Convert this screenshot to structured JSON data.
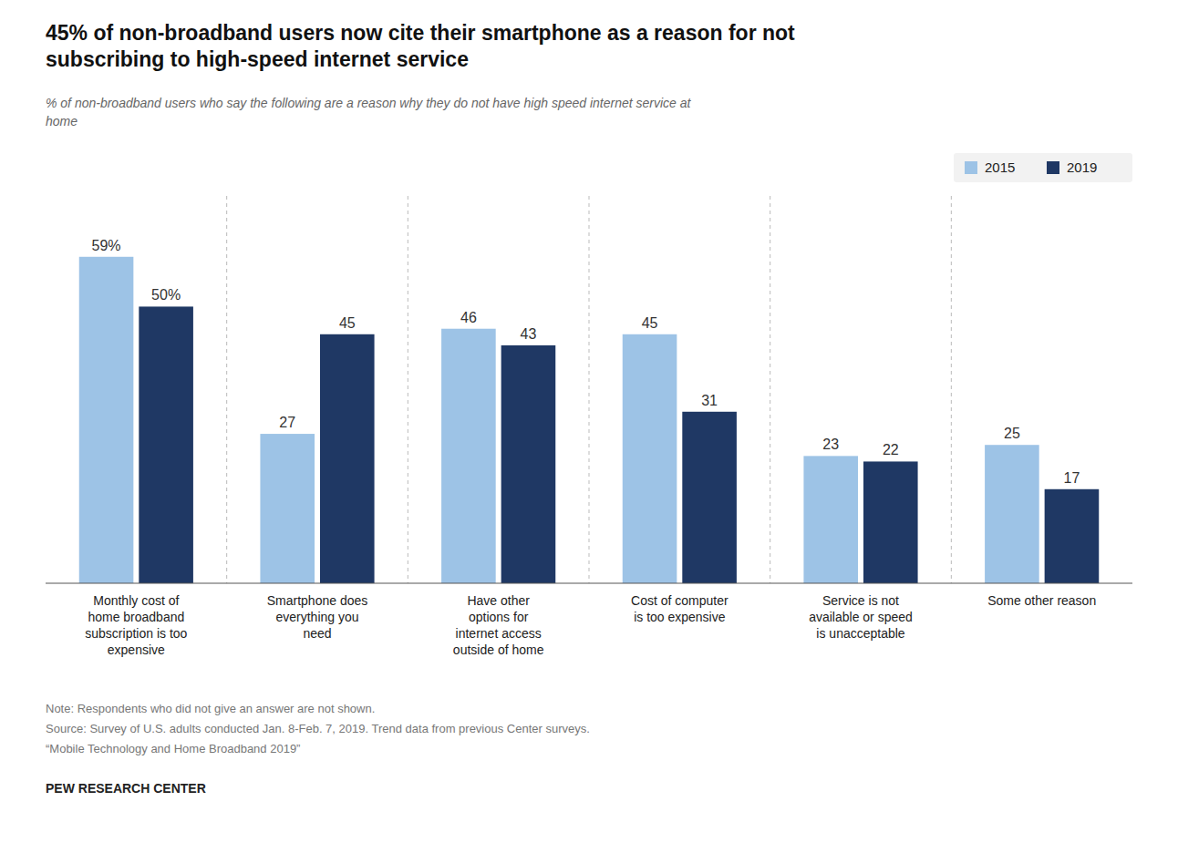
{
  "chart_data": {
    "type": "bar",
    "title": "45% of non-broadband users now cite their smartphone as a reason for not\nsubscribing to high-speed internet service",
    "subtitle": "% of non-broadband users who say the following are a reason why they do not have high speed internet service at\nhome",
    "categories": [
      "Monthly cost of\nhome broadband\nsubscription is too\nexpensive",
      "Smartphone does\neverything you\nneed",
      "Have other\noptions for\ninternet access\noutside of home",
      "Cost of computer\nis too expensive",
      "Service is not\navailable or speed\nis unacceptable",
      "Some other reason"
    ],
    "series": [
      {
        "name": "2015",
        "color": "#9DC3E6",
        "values": [
          59,
          27,
          46,
          45,
          23,
          25
        ],
        "value_labels": [
          "59%",
          "27",
          "46",
          "45",
          "23",
          "25"
        ]
      },
      {
        "name": "2019",
        "color": "#1F3864",
        "values": [
          50,
          45,
          43,
          31,
          22,
          17
        ],
        "value_labels": [
          "50%",
          "45",
          "43",
          "31",
          "22",
          "17"
        ]
      }
    ],
    "ylim": [
      0,
      70
    ],
    "data_labels": true,
    "tick_labels": "x",
    "grid": false,
    "legend": "upper right",
    "notes": [
      "Note: Respondents who did not give an answer are not shown.",
      "Source: Survey of U.S. adults conducted Jan. 8-Feb. 7, 2019. Trend data from previous Center surveys.",
      "“Mobile Technology and Home Broadband 2019”"
    ],
    "footer": "PEW RESEARCH CENTER"
  }
}
